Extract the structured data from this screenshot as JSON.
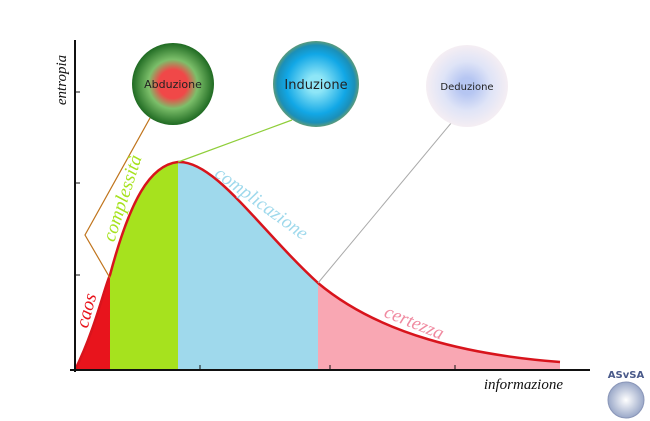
{
  "axes": {
    "y_label": "entropia",
    "x_label": "informazione"
  },
  "regions": [
    {
      "label": "caos"
    },
    {
      "label": "complessità"
    },
    {
      "label": "complicazione"
    },
    {
      "label": "certezza"
    }
  ],
  "circles": [
    {
      "label": "Abduzione"
    },
    {
      "label": "Induzione"
    },
    {
      "label": "Deduzione"
    }
  ],
  "logo": {
    "text": "ASvSA"
  }
}
